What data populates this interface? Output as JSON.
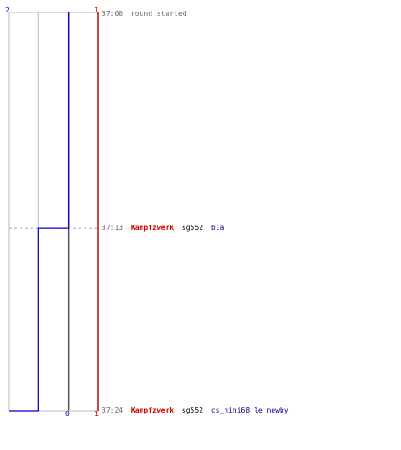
{
  "chart_data": {
    "type": "line",
    "title": "",
    "xlabel": "",
    "ylabel": "",
    "grid": true,
    "axis_labels": {
      "blue_score": "2",
      "red_score": "1",
      "bottom_blue": "0",
      "bottom_red": "1"
    },
    "series": [
      {
        "team": "blue",
        "color": "#0000cc",
        "points": [
          {
            "time": "37:00",
            "count": 2
          },
          {
            "time": "37:13",
            "count": 1
          },
          {
            "time": "37:24",
            "count": 0
          }
        ]
      },
      {
        "team": "red",
        "color": "#cc0000",
        "points": [
          {
            "time": "37:00",
            "count": 1
          },
          {
            "time": "37:24",
            "count": 1
          }
        ]
      }
    ],
    "x_range": [
      0,
      3
    ],
    "events": [
      {
        "time": "37:00",
        "text": "round started"
      },
      {
        "time": "37:13",
        "killer": "Kampfzwerk",
        "weapon": "sg552",
        "victim": "bla"
      },
      {
        "time": "37:24",
        "killer": "Kampfzwerk",
        "weapon": "sg552",
        "victim": "cs_nini68 le newby"
      }
    ]
  },
  "colors": {
    "grid": "#bbbbbb",
    "center": "#555555",
    "blue": "#0000cc",
    "red": "#cc0000",
    "time": "#666666",
    "killer": "#cc0000",
    "weapon": "#000000",
    "victim": "#000080",
    "dash": "#aaaaaa"
  }
}
